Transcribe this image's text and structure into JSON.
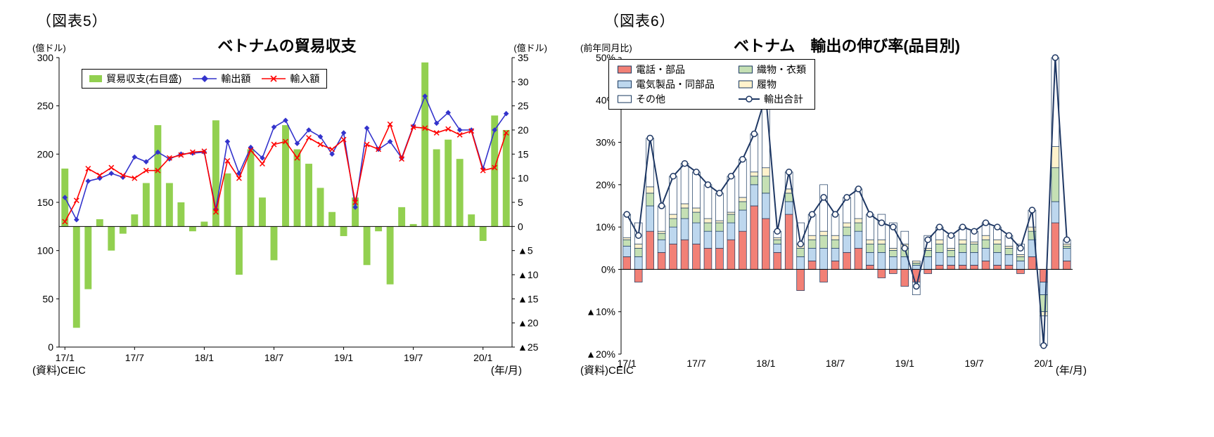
{
  "fig5": {
    "label": "（図表5）",
    "title": "ベトナムの貿易収支",
    "unit_left": "(億ドル)",
    "unit_right": "(億ドル)",
    "legend": [
      {
        "label": "貿易収支(右目盛)"
      },
      {
        "label": "輸出額"
      },
      {
        "label": "輸入額"
      }
    ],
    "source": "(資料)CEIC",
    "axis_note": "(年/月)"
  },
  "fig6": {
    "label": "（図表6）",
    "title": "ベトナム　輸出の伸び率(品目別)",
    "unit_yoy": "(前年同月比)",
    "legend": [
      {
        "label": "電話・部品"
      },
      {
        "label": "織物・衣類"
      },
      {
        "label": "電気製品・同部品"
      },
      {
        "label": "履物"
      },
      {
        "label": "その他"
      },
      {
        "label": "輸出合計"
      }
    ],
    "source": "(資料)CEIC",
    "axis_note": "(年/月)"
  },
  "chart_data": [
    {
      "type": "bar",
      "title": "ベトナムの貿易収支",
      "x_months": [
        "17/1",
        "17/2",
        "17/3",
        "17/4",
        "17/5",
        "17/6",
        "17/7",
        "17/8",
        "17/9",
        "17/10",
        "17/11",
        "17/12",
        "18/1",
        "18/2",
        "18/3",
        "18/4",
        "18/5",
        "18/6",
        "18/7",
        "18/8",
        "18/9",
        "18/10",
        "18/11",
        "18/12",
        "19/1",
        "19/2",
        "19/3",
        "19/4",
        "19/5",
        "19/6",
        "19/7",
        "19/8",
        "19/9",
        "19/10",
        "19/11",
        "19/12",
        "20/1",
        "20/2",
        "20/3"
      ],
      "x_ticks": [
        {
          "index": 0,
          "label": "17/1"
        },
        {
          "index": 6,
          "label": "17/7"
        },
        {
          "index": 12,
          "label": "18/1"
        },
        {
          "index": 18,
          "label": "18/7"
        },
        {
          "index": 24,
          "label": "19/1"
        },
        {
          "index": 30,
          "label": "19/7"
        },
        {
          "index": 36,
          "label": "20/1"
        }
      ],
      "left_axis": {
        "min": 0,
        "max": 300,
        "ticks": [
          {
            "value": 0,
            "label": "0"
          },
          {
            "value": 50,
            "label": "50"
          },
          {
            "value": 100,
            "label": "100"
          },
          {
            "value": 150,
            "label": "150"
          },
          {
            "value": 200,
            "label": "200"
          },
          {
            "value": 250,
            "label": "250"
          },
          {
            "value": 300,
            "label": "300"
          }
        ]
      },
      "right_axis": {
        "min": -25,
        "max": 35,
        "ticks": [
          {
            "value": -25,
            "label": "▲25"
          },
          {
            "value": -20,
            "label": "▲20"
          },
          {
            "value": -15,
            "label": "▲15"
          },
          {
            "value": -10,
            "label": "▲10"
          },
          {
            "value": -5,
            "label": "▲5"
          },
          {
            "value": 0,
            "label": "0"
          },
          {
            "value": 5,
            "label": "5"
          },
          {
            "value": 10,
            "label": "10"
          },
          {
            "value": 15,
            "label": "15"
          },
          {
            "value": 20,
            "label": "20"
          },
          {
            "value": 25,
            "label": "25"
          },
          {
            "value": 30,
            "label": "30"
          },
          {
            "value": 35,
            "label": "35"
          }
        ]
      },
      "series": [
        {
          "name": "貿易収支(右目盛)",
          "type": "bar",
          "axis": "right",
          "color": "#92D050",
          "values": [
            12,
            -21,
            -13,
            1.5,
            -5,
            -1.5,
            2.5,
            9,
            21,
            9,
            5,
            -1,
            1,
            22,
            11,
            -10,
            16,
            6,
            -7,
            21,
            16,
            13,
            8,
            3,
            -2,
            6,
            -8,
            -1,
            -12,
            4,
            0.5,
            34,
            16,
            18,
            14,
            2.5,
            -3,
            23,
            20
          ]
        },
        {
          "name": "輸出額",
          "type": "line",
          "marker": "diamond",
          "axis": "left",
          "color": "#3333CC",
          "values": [
            155,
            132,
            172,
            175,
            180,
            176,
            197,
            192,
            202,
            195,
            200,
            201,
            202,
            143,
            213,
            180,
            207,
            196,
            228,
            235,
            211,
            225,
            218,
            200,
            222,
            145,
            227,
            205,
            213,
            196,
            229,
            260,
            232,
            243,
            225,
            225,
            185,
            225,
            242
          ]
        },
        {
          "name": "輸入額",
          "type": "line",
          "marker": "x",
          "axis": "left",
          "color": "#FF0000",
          "values": [
            130,
            152,
            185,
            178,
            186,
            178,
            175,
            183,
            183,
            196,
            199,
            202,
            203,
            140,
            193,
            175,
            204,
            190,
            210,
            213,
            196,
            217,
            210,
            205,
            215,
            150,
            210,
            205,
            231,
            195,
            228,
            227,
            222,
            226,
            220,
            224,
            183,
            186,
            222
          ]
        }
      ]
    },
    {
      "type": "bar",
      "subtype": "stacked-contribution-with-total-line",
      "title": "ベトナム　輸出の伸び率(品目別)",
      "ylabel": "(前年同月比)",
      "x_months": [
        "17/1",
        "17/2",
        "17/3",
        "17/4",
        "17/5",
        "17/6",
        "17/7",
        "17/8",
        "17/9",
        "17/10",
        "17/11",
        "17/12",
        "18/1",
        "18/2",
        "18/3",
        "18/4",
        "18/5",
        "18/6",
        "18/7",
        "18/8",
        "18/9",
        "18/10",
        "18/11",
        "18/12",
        "19/1",
        "19/2",
        "19/3",
        "19/4",
        "19/5",
        "19/6",
        "19/7",
        "19/8",
        "19/9",
        "19/10",
        "19/11",
        "19/12",
        "20/1",
        "20/2",
        "20/3"
      ],
      "x_ticks": [
        {
          "index": 0,
          "label": "17/1"
        },
        {
          "index": 6,
          "label": "17/7"
        },
        {
          "index": 12,
          "label": "18/1"
        },
        {
          "index": 18,
          "label": "18/7"
        },
        {
          "index": 24,
          "label": "19/1"
        },
        {
          "index": 30,
          "label": "19/7"
        },
        {
          "index": 36,
          "label": "20/1"
        }
      ],
      "y_axis": {
        "min": -20,
        "max": 50,
        "unit": "%",
        "ticks": [
          {
            "value": -20,
            "label": "▲20%"
          },
          {
            "value": -10,
            "label": "▲10%"
          },
          {
            "value": 0,
            "label": "0%"
          },
          {
            "value": 10,
            "label": "10%"
          },
          {
            "value": 20,
            "label": "20%"
          },
          {
            "value": 30,
            "label": "30%"
          },
          {
            "value": 40,
            "label": "40%"
          },
          {
            "value": 50,
            "label": "50%"
          }
        ]
      },
      "stack_series": [
        {
          "name": "電話・部品",
          "fill": "#F28076",
          "stroke": "#17375E",
          "values": [
            3,
            -3,
            9,
            4,
            6,
            7,
            6,
            5,
            5,
            7,
            9,
            15,
            12,
            4,
            13,
            -5,
            2,
            -3,
            2,
            4,
            5,
            1,
            -2,
            -1,
            -4,
            -3,
            -1,
            1,
            1,
            1,
            1,
            2,
            1,
            1,
            -1,
            3,
            -3,
            11,
            2
          ]
        },
        {
          "name": "電気製品・同部品",
          "fill": "#BDD7EE",
          "stroke": "#17375E",
          "values": [
            2.5,
            3,
            6,
            3,
            4,
            5,
            5,
            4,
            4,
            4,
            5,
            5,
            6,
            2,
            3,
            3,
            3,
            5,
            3,
            4,
            4,
            3,
            4,
            3,
            3,
            1,
            3,
            3,
            2,
            3,
            3,
            3,
            3,
            2.5,
            2,
            4,
            -3,
            5,
            3
          ]
        },
        {
          "name": "織物・衣類",
          "fill": "#C5E0B4",
          "stroke": "#17375E",
          "values": [
            1.5,
            2,
            3,
            1.5,
            2,
            2.5,
            2.5,
            2,
            2,
            2,
            2,
            2,
            4,
            1,
            2,
            2,
            2,
            3,
            2,
            2,
            2,
            2,
            2,
            1.5,
            2,
            0.5,
            1.5,
            2,
            1.5,
            2,
            2,
            2,
            2,
            1.5,
            1,
            2,
            -4,
            8,
            0.5
          ]
        },
        {
          "name": "履物",
          "fill": "#FFF2CC",
          "stroke": "#17375E",
          "values": [
            0.5,
            1,
            1.5,
            0.5,
            1,
            1,
            1,
            1,
            0.5,
            0.5,
            1,
            1,
            2,
            0.5,
            1,
            1,
            1,
            1,
            1,
            1,
            1,
            1,
            1,
            0.5,
            1,
            0.5,
            0.5,
            1,
            0.5,
            1,
            0.5,
            1,
            1,
            0.5,
            0.5,
            1,
            -1,
            5,
            0.5
          ]
        },
        {
          "name": "その他",
          "fill": "#FFFFFF",
          "stroke": "#17375E",
          "values": [
            5.5,
            5,
            11.5,
            6,
            9,
            9.5,
            8.5,
            8,
            6.5,
            8.5,
            9,
            9,
            17,
            1.5,
            4,
            5,
            5,
            11,
            5,
            6,
            7,
            6,
            6,
            6,
            3,
            -3,
            3,
            3,
            3,
            3,
            2.5,
            3,
            3,
            2.5,
            2.5,
            4,
            -7,
            21,
            1
          ]
        }
      ],
      "line_series": {
        "name": "輸出合計",
        "color": "#1F3864",
        "marker": "circle",
        "values": [
          13,
          8,
          31,
          15,
          22,
          25,
          23,
          20,
          18,
          22,
          26,
          32,
          41,
          9,
          23,
          6,
          13,
          17,
          13,
          17,
          19,
          13,
          11,
          10,
          5,
          -4,
          7,
          10,
          8,
          10,
          9,
          11,
          10,
          8,
          5,
          14,
          -18,
          50,
          7
        ]
      }
    }
  ]
}
